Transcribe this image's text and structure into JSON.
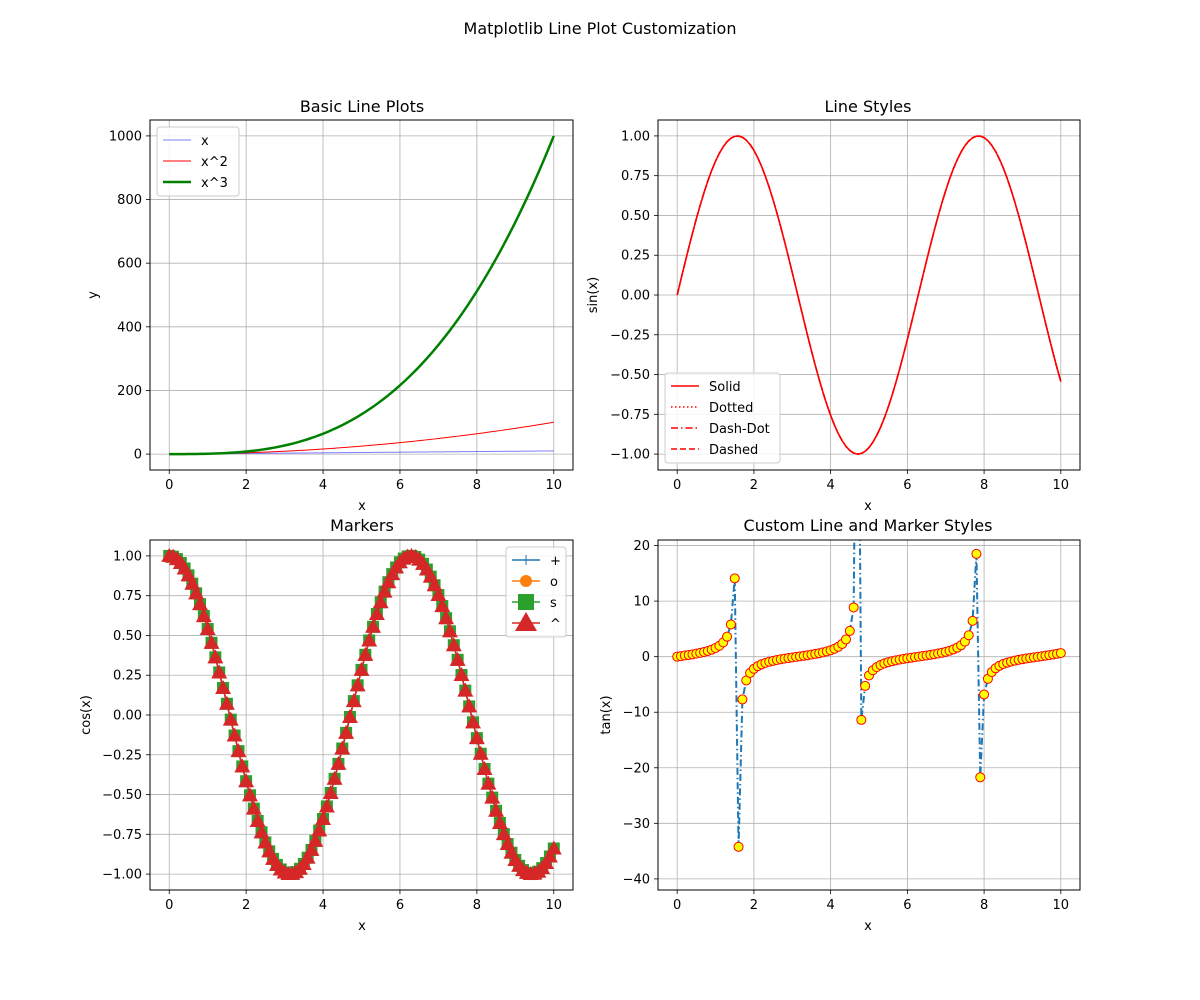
{
  "figure": {
    "suptitle": "Matplotlib Line Plot Customization"
  },
  "chart_data": [
    {
      "type": "line",
      "title": "Basic Line Plots",
      "xlabel": "x",
      "ylabel": "y",
      "xlim": [
        -0.5,
        10.5
      ],
      "ylim": [
        -50,
        1050
      ],
      "xticks": [
        0,
        2,
        4,
        6,
        8,
        10
      ],
      "yticks": [
        0,
        200,
        400,
        600,
        800,
        1000
      ],
      "grid": true,
      "legend": "top-left",
      "x": {
        "from": 0,
        "to": 10,
        "points": 101
      },
      "series": [
        {
          "name": "x",
          "expr": "x",
          "color": "#0000ff",
          "alpha": 0.5,
          "width": 1,
          "style": "solid"
        },
        {
          "name": "x^2",
          "expr": "x^2",
          "color": "#ff0000",
          "alpha": 1,
          "width": 1,
          "style": "solid"
        },
        {
          "name": "x^3",
          "expr": "x^3",
          "color": "#008000",
          "alpha": 1,
          "width": 2.5,
          "style": "solid"
        }
      ]
    },
    {
      "type": "line",
      "title": "Line Styles",
      "xlabel": "x",
      "ylabel": "sin(x)",
      "xlim": [
        -0.5,
        10.5
      ],
      "ylim": [
        -1.1,
        1.1
      ],
      "xticks": [
        0,
        2,
        4,
        6,
        8,
        10
      ],
      "yticks": [
        -1.0,
        -0.75,
        -0.5,
        -0.25,
        0.0,
        0.25,
        0.5,
        0.75,
        1.0
      ],
      "ytick_labels": [
        "−1.00",
        "−0.75",
        "−0.50",
        "−0.25",
        "0.00",
        "0.25",
        "0.50",
        "0.75",
        "1.00"
      ],
      "grid": true,
      "legend": "bottom-left",
      "x": {
        "from": 0,
        "to": 10,
        "points": 101
      },
      "series": [
        {
          "name": "Solid",
          "expr": "sin",
          "color": "#ff0000",
          "width": 1.5,
          "style": "solid"
        },
        {
          "name": "Dotted",
          "expr": "sin",
          "color": "#ff0000",
          "width": 1.5,
          "style": "dotted"
        },
        {
          "name": "Dash-Dot",
          "expr": "sin",
          "color": "#ff0000",
          "width": 1.5,
          "style": "dashdot"
        },
        {
          "name": "Dashed",
          "expr": "sin",
          "color": "#ff0000",
          "width": 1.5,
          "style": "dashed"
        }
      ]
    },
    {
      "type": "line",
      "title": "Markers",
      "xlabel": "x",
      "ylabel": "cos(x)",
      "xlim": [
        -0.5,
        10.5
      ],
      "ylim": [
        -1.1,
        1.1
      ],
      "xticks": [
        0,
        2,
        4,
        6,
        8,
        10
      ],
      "yticks": [
        -1.0,
        -0.75,
        -0.5,
        -0.25,
        0.0,
        0.25,
        0.5,
        0.75,
        1.0
      ],
      "ytick_labels": [
        "−1.00",
        "−0.75",
        "−0.50",
        "−0.25",
        "0.00",
        "0.25",
        "0.50",
        "0.75",
        "1.00"
      ],
      "grid": true,
      "legend": "top-right",
      "x": {
        "from": 0,
        "to": 10,
        "points": 101
      },
      "series": [
        {
          "name": "+",
          "expr": "cos",
          "color": "#1f77b4",
          "marker": "+"
        },
        {
          "name": "o",
          "expr": "cos",
          "color": "#ff7f0e",
          "marker": "o"
        },
        {
          "name": "s",
          "expr": "cos",
          "color": "#2ca02c",
          "marker": "s"
        },
        {
          "name": "^",
          "expr": "cos",
          "color": "#d62728",
          "marker": "^"
        }
      ]
    },
    {
      "type": "line",
      "title": "Custom Line and Marker Styles",
      "xlabel": "x",
      "ylabel": "tan(x)",
      "xlim": [
        -0.5,
        10.5
      ],
      "ylim": [
        -42,
        21
      ],
      "xticks": [
        0,
        2,
        4,
        6,
        8,
        10
      ],
      "yticks": [
        -40,
        -30,
        -20,
        -10,
        0,
        10,
        20
      ],
      "ytick_labels": [
        "−40",
        "−30",
        "−20",
        "−10",
        "0",
        "10",
        "20"
      ],
      "grid": true,
      "legend": "none",
      "x": {
        "from": 0,
        "to": 10,
        "points": 101
      },
      "series": [
        {
          "expr": "tan",
          "color": "#1f77b4",
          "width": 2,
          "style": "dashdot",
          "marker": "o",
          "marker_face": "#ffff00",
          "marker_edge": "#ff0000"
        }
      ]
    }
  ]
}
